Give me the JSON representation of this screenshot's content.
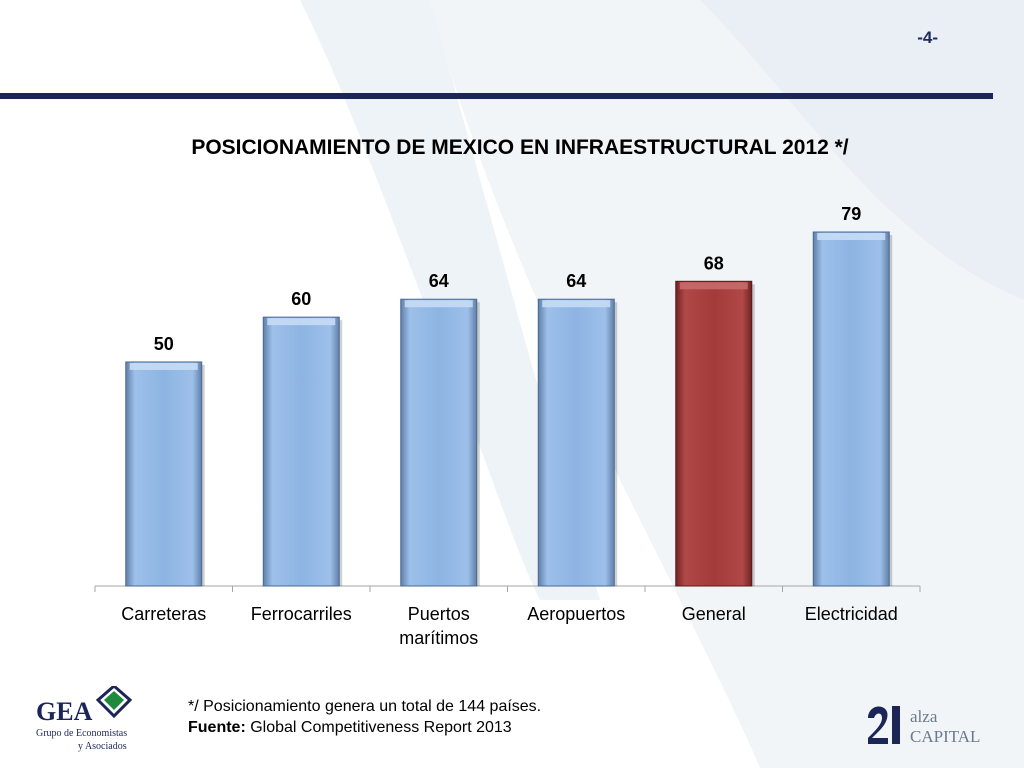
{
  "page_number": "-4-",
  "footnote": {
    "line1": "*/ Posicionamiento genera un total de 144 países.",
    "source_label": "Fuente:",
    "source_text": " Global Competitiveness Report 2013"
  },
  "logos": {
    "gea": {
      "name": "GEA",
      "line1": "Grupo de Economistas",
      "line2": "y Asociados"
    },
    "alza": {
      "top": "alza",
      "bottom": "CAPITAL"
    }
  },
  "colors": {
    "bar_default": "#8db4e2",
    "bar_highlight": "#a33b3b",
    "rule": "#1b2556"
  },
  "chart_data": {
    "type": "bar",
    "title": "POSICIONAMIENTO DE MEXICO EN INFRAESTRUCTURAL 2012 */",
    "categories": [
      "Carreteras",
      "Ferrocarriles",
      "Puertos marítimos",
      "Aeropuertos",
      "General",
      "Electricidad"
    ],
    "category_lines": [
      [
        "Carreteras"
      ],
      [
        "Ferrocarriles"
      ],
      [
        "Puertos",
        "marítimos"
      ],
      [
        "Aeropuertos"
      ],
      [
        "General"
      ],
      [
        "Electricidad"
      ]
    ],
    "values": [
      50,
      60,
      64,
      64,
      68,
      79
    ],
    "highlight": "General",
    "ylim": [
      0,
      80
    ],
    "grid": false,
    "data_labels": true
  }
}
